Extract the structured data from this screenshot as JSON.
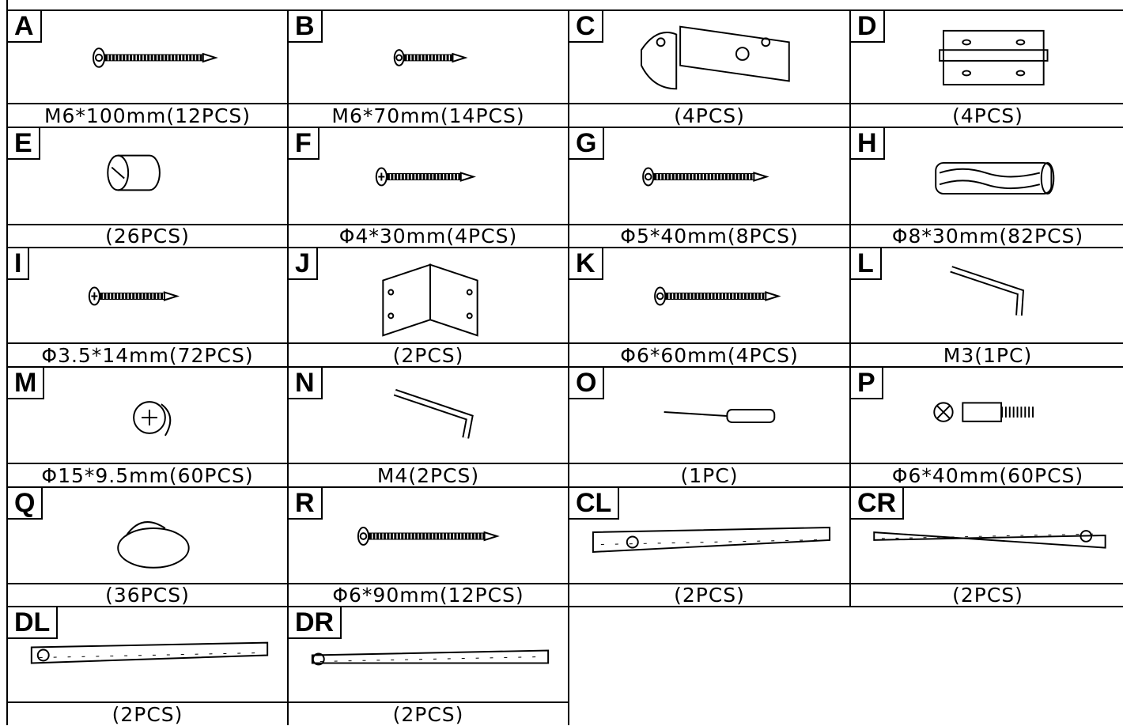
{
  "items": [
    {
      "label": "A",
      "caption": "M6*100mm(12PCS)"
    },
    {
      "label": "B",
      "caption": "M6*70mm(14PCS)"
    },
    {
      "label": "C",
      "caption": "(4PCS)"
    },
    {
      "label": "D",
      "caption": "(4PCS)"
    },
    {
      "label": "E",
      "caption": "(26PCS)"
    },
    {
      "label": "F",
      "caption": "Φ4*30mm(4PCS)"
    },
    {
      "label": "G",
      "caption": "Φ5*40mm(8PCS)"
    },
    {
      "label": "H",
      "caption": "Φ8*30mm(82PCS)"
    },
    {
      "label": "I",
      "caption": "Φ3.5*14mm(72PCS)"
    },
    {
      "label": "J",
      "caption": "(2PCS)"
    },
    {
      "label": "K",
      "caption": "Φ6*60mm(4PCS)"
    },
    {
      "label": "L",
      "caption": "M3(1PC)"
    },
    {
      "label": "M",
      "caption": "Φ15*9.5mm(60PCS)"
    },
    {
      "label": "N",
      "caption": "M4(2PCS)"
    },
    {
      "label": "O",
      "caption": "(1PC)"
    },
    {
      "label": "P",
      "caption": "Φ6*40mm(60PCS)"
    },
    {
      "label": "Q",
      "caption": "(36PCS)"
    },
    {
      "label": "R",
      "caption": "Φ6*90mm(12PCS)"
    },
    {
      "label": "CL",
      "caption": "(2PCS)"
    },
    {
      "label": "CR",
      "caption": "(2PCS)"
    },
    {
      "label": "DL",
      "caption": "(2PCS)"
    },
    {
      "label": "DR",
      "caption": "(2PCS)"
    }
  ]
}
